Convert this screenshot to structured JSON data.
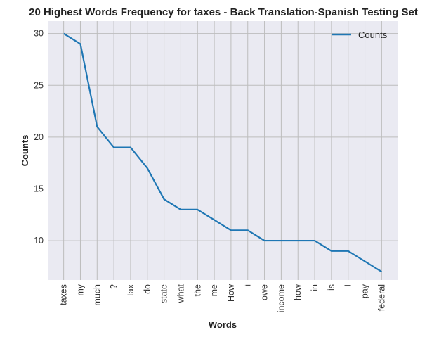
{
  "chart_data": {
    "type": "line",
    "title": "20 Highest Words Frequency for taxes - Back Translation-Spanish Testing Set",
    "xlabel": "Words",
    "ylabel": "Counts",
    "categories": [
      "taxes",
      "my",
      "much",
      "?",
      "tax",
      "do",
      "state",
      "what",
      "the",
      "me",
      "How",
      "i",
      "owe",
      "income",
      "how",
      "in",
      "is",
      "I",
      "pay",
      "federal"
    ],
    "series": [
      {
        "name": "Counts",
        "values": [
          30,
          29,
          21,
          19,
          19,
          17,
          14,
          13,
          13,
          12,
          11,
          11,
          10,
          10,
          10,
          10,
          9,
          9,
          8,
          7
        ],
        "color": "#1f77b4"
      }
    ],
    "ylim": [
      6.2,
      31.2
    ],
    "yticks": [
      10,
      15,
      20,
      25,
      30
    ],
    "grid": true,
    "legend": "top-right",
    "plot_background": "#eaeaf2",
    "grid_color": "#bdbdbd"
  }
}
